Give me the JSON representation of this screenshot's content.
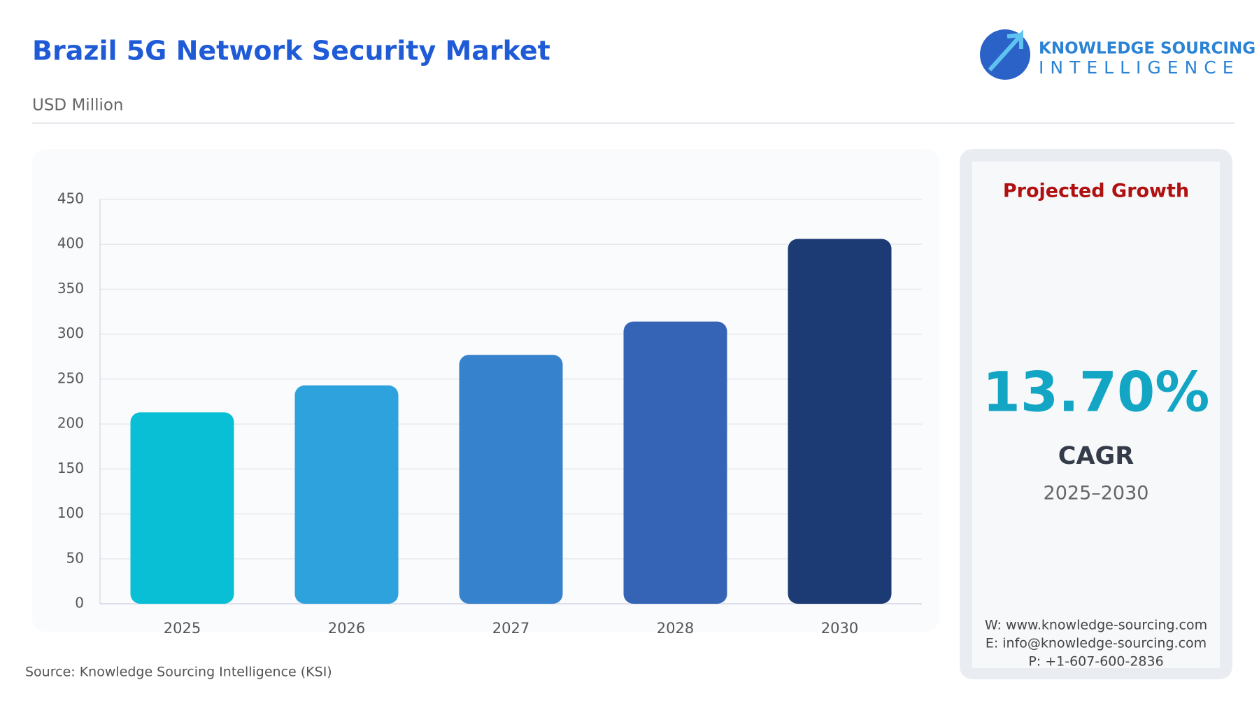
{
  "header": {
    "title": "Brazil 5G Network Security Market",
    "subtitle": "USD Million"
  },
  "logo": {
    "line1": "KNOWLEDGE SOURCING",
    "line2": "INTELLIGENCE"
  },
  "chart_data": {
    "type": "bar",
    "categories": [
      "2025",
      "2026",
      "2027",
      "2028",
      "2030"
    ],
    "values": [
      213,
      243,
      277,
      314,
      406
    ],
    "colors": [
      "#08bfd6",
      "#2ea2dc",
      "#3682cc",
      "#3564b6",
      "#1c3a74"
    ],
    "ylim": [
      0,
      450
    ],
    "yticks": [
      0,
      50,
      100,
      150,
      200,
      250,
      300,
      350,
      400,
      450
    ],
    "grid": true
  },
  "panel": {
    "heading": "Projected Growth",
    "value": "13.70%",
    "metric": "CAGR",
    "period": "2025–2030",
    "contacts": [
      "W: www.knowledge-sourcing.com",
      "E: info@knowledge-sourcing.com",
      "P: +1-607-600-2836"
    ]
  },
  "source": "Source: Knowledge Sourcing Intelligence (KSI)"
}
